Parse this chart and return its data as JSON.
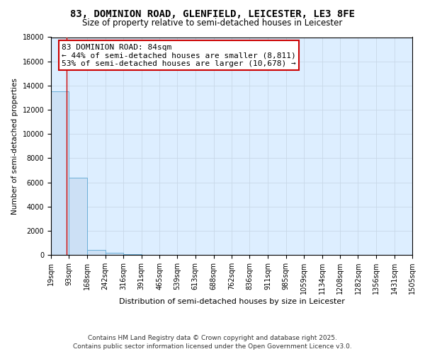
{
  "title_line1": "83, DOMINION ROAD, GLENFIELD, LEICESTER, LE3 8FE",
  "title_line2": "Size of property relative to semi-detached houses in Leicester",
  "xlabel": "Distribution of semi-detached houses by size in Leicester",
  "ylabel": "Number of semi-detached properties",
  "bin_edges": [
    19,
    93,
    168,
    242,
    316,
    391,
    465,
    539,
    613,
    688,
    762,
    836,
    911,
    985,
    1059,
    1134,
    1208,
    1282,
    1356,
    1431,
    1505
  ],
  "bar_heights": [
    13500,
    6400,
    400,
    150,
    30,
    10,
    5,
    3,
    2,
    1,
    1,
    1,
    0,
    0,
    0,
    0,
    0,
    0,
    0,
    0
  ],
  "bar_color": "#cce0f5",
  "bar_edge_color": "#6aaed6",
  "ylim": [
    0,
    18000
  ],
  "yticks": [
    0,
    2000,
    4000,
    6000,
    8000,
    10000,
    12000,
    14000,
    16000,
    18000
  ],
  "property_size": 84,
  "annotation_line1": "83 DOMINION ROAD: 84sqm",
  "annotation_line2": "← 44% of semi-detached houses are smaller (8,811)",
  "annotation_line3": "53% of semi-detached houses are larger (10,678) →",
  "annotation_box_color": "#ffffff",
  "annotation_box_edge_color": "#cc0000",
  "red_line_color": "#cc0000",
  "grid_color": "#c8d8e8",
  "background_color": "#ddeeff",
  "footer_line1": "Contains HM Land Registry data © Crown copyright and database right 2025.",
  "footer_line2": "Contains public sector information licensed under the Open Government Licence v3.0.",
  "title_fontsize": 10,
  "subtitle_fontsize": 8.5,
  "tick_fontsize": 7,
  "ylabel_fontsize": 7.5,
  "xlabel_fontsize": 8,
  "annotation_fontsize": 8,
  "footer_fontsize": 6.5
}
